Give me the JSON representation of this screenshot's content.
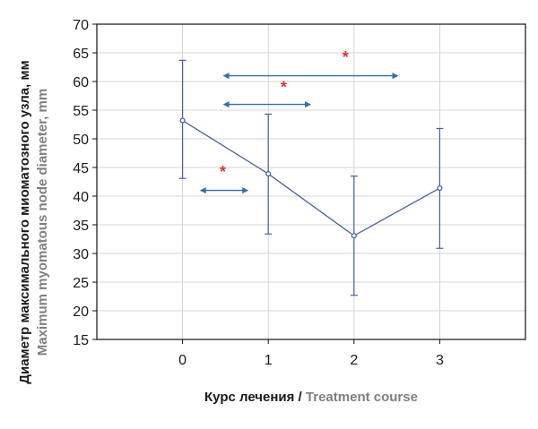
{
  "colors": {
    "series": "#4a5ea8",
    "arrows": "#2e6fb3",
    "stars": "#e0352b",
    "grid": "#d4d4d4"
  },
  "chart_data": {
    "type": "line",
    "x": [
      0,
      1,
      2,
      3
    ],
    "xticks": [
      "0",
      "1",
      "2",
      "3"
    ],
    "xlim": [
      -1,
      4
    ],
    "ylim": [
      15,
      70
    ],
    "yticks": [
      "15",
      "20",
      "25",
      "30",
      "35",
      "40",
      "45",
      "50",
      "55",
      "60",
      "65",
      "70"
    ],
    "grid": true,
    "ylabel_ru": "Диаметр максимального миоматозного узла, мм",
    "ylabel_en": "Maximum myomatous node diameter, mm",
    "xlabel_ru": "Курс лечения",
    "xlabel_sep": " / ",
    "xlabel_en": "Treatment course",
    "series": [
      {
        "values": [
          53.2,
          43.9,
          33.1,
          41.4
        ],
        "err_low": [
          43.1,
          33.4,
          22.7,
          30.9
        ],
        "err_high": [
          63.7,
          54.3,
          43.5,
          51.8
        ]
      }
    ],
    "annotations": [
      {
        "text": "*",
        "type": "double-arrow",
        "x1": 0.2,
        "x2": 0.77,
        "y": 41,
        "star_x": 0.47,
        "star_y": 44.5
      },
      {
        "text": "*",
        "type": "double-arrow",
        "x1": 0.47,
        "x2": 1.5,
        "y": 56,
        "star_x": 1.18,
        "star_y": 59.3
      },
      {
        "text": "*",
        "type": "double-arrow",
        "x1": 0.47,
        "x2": 2.52,
        "y": 61,
        "star_x": 1.9,
        "star_y": 64.5
      }
    ]
  }
}
